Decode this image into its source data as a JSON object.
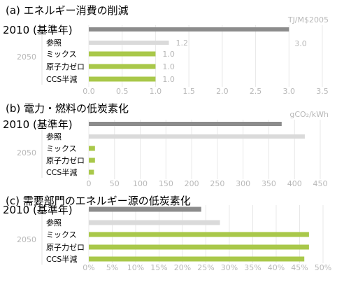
{
  "colors": {
    "base_bar": "#8c8c8c",
    "reference_bar": "#dadada",
    "scenario_bar": "#a9c84a",
    "tick_text": "#b8b8b8",
    "grid": "#e8e8e8",
    "title_text": "#000000"
  },
  "chart_data": [
    {
      "type": "bar",
      "orientation": "horizontal",
      "title": "(a) エネルギー消費の削減",
      "unit_label": "TJ/M$2005",
      "base_label": "2010 (基準年)",
      "group_label": "2050",
      "categories": [
        "2010 (基準年)",
        "参照",
        "ミックス",
        "原子力ゼロ",
        "CCS半減"
      ],
      "values": [
        3.0,
        1.2,
        1.0,
        1.0,
        1.0
      ],
      "data_labels": [
        "3.0",
        "1.2",
        "1.0",
        "1.0",
        "1.0"
      ],
      "xlim": [
        0,
        3.5
      ],
      "ticks": [
        "0.0",
        "0.5",
        "1.0",
        "1.5",
        "2.0",
        "2.5",
        "3.0",
        "3.5"
      ],
      "grid": true
    },
    {
      "type": "bar",
      "orientation": "horizontal",
      "title": "(b) 電力・燃料の低炭素化",
      "unit_label": "gCO₂/kWh",
      "base_label": "2010 (基準年)",
      "group_label": "2050",
      "categories": [
        "2010 (基準年)",
        "参照",
        "ミックス",
        "原子力ゼロ",
        "CCS半減"
      ],
      "values": [
        375,
        420,
        12,
        12,
        10
      ],
      "data_labels": [],
      "xlim": [
        0,
        450
      ],
      "ticks": [
        "0",
        "50",
        "100",
        "150",
        "200",
        "250",
        "300",
        "350",
        "400",
        "450"
      ],
      "grid": true
    },
    {
      "type": "bar",
      "orientation": "horizontal",
      "title": "(c) 需要部門のエネルギー源の低炭素化",
      "unit_label": "",
      "base_label": "2010 (基準年)",
      "group_label": "2050",
      "categories": [
        "2010 (基準年)",
        "参照",
        "ミックス",
        "原子力ゼロ",
        "CCS半減"
      ],
      "values": [
        24,
        28,
        47,
        47,
        46
      ],
      "data_labels": [],
      "xlim": [
        0,
        50
      ],
      "ticks": [
        "0%",
        "5%",
        "10%",
        "15%",
        "20%",
        "25%",
        "30%",
        "35%",
        "40%",
        "45%",
        "50%"
      ],
      "grid": true
    }
  ]
}
